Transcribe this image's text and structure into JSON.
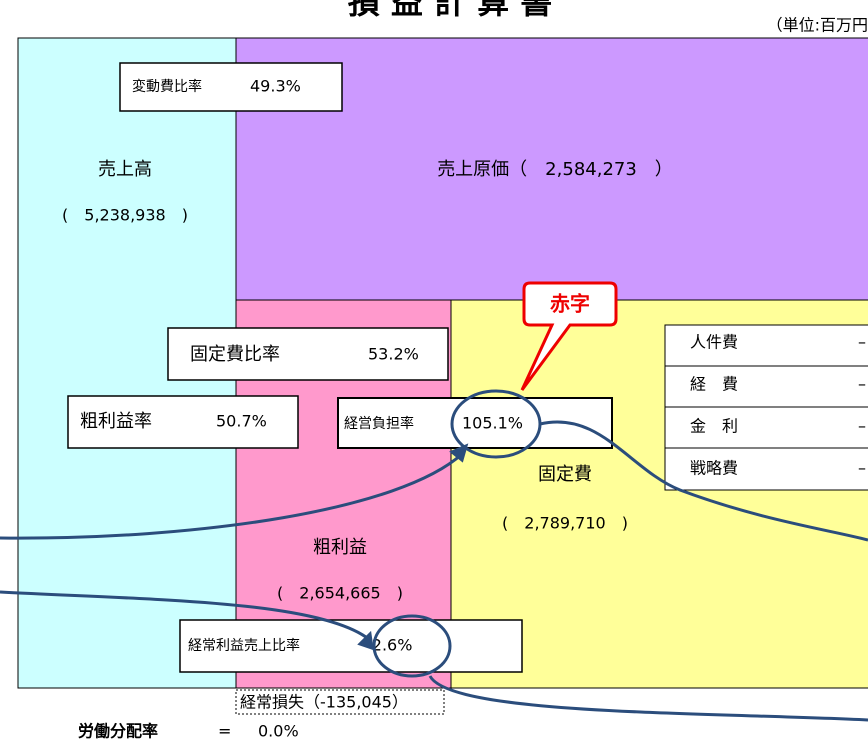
{
  "header": {
    "title": "損 益 計 算 書",
    "unit": "（単位:百万円"
  },
  "sales": {
    "label": "売上高",
    "value": "(　5,238,938　)"
  },
  "variable_cost_ratio": {
    "label": "変動費比率",
    "value": "49.3%"
  },
  "cost_of_sales": {
    "label": "売上原価（　2,584,273　）"
  },
  "fixed_cost_ratio": {
    "label": "固定費比率",
    "value": "53.2%"
  },
  "gross_margin_ratio": {
    "label": "粗利益率",
    "value": "50.7%"
  },
  "burden_ratio": {
    "label": "経営負担率",
    "value": "105.1%"
  },
  "deficit": "赤字",
  "fixed_cost": {
    "label": "固定費",
    "value": "(　2,789,710　)"
  },
  "gross_profit": {
    "label": "粗利益",
    "value": "(　2,654,665　)"
  },
  "ordinary_ratio": {
    "label": "経常利益売上比率",
    "value": "-2.6%"
  },
  "ordinary_loss": "経常損失（-135,045）",
  "labor_share": {
    "label": "労働分配率",
    "eq": "=",
    "value": "0.0%"
  },
  "table": {
    "rows": [
      [
        "人件費",
        "–"
      ],
      [
        "経　費",
        "–"
      ],
      [
        "金　利",
        "–"
      ],
      [
        "戦略費",
        "–"
      ]
    ]
  }
}
